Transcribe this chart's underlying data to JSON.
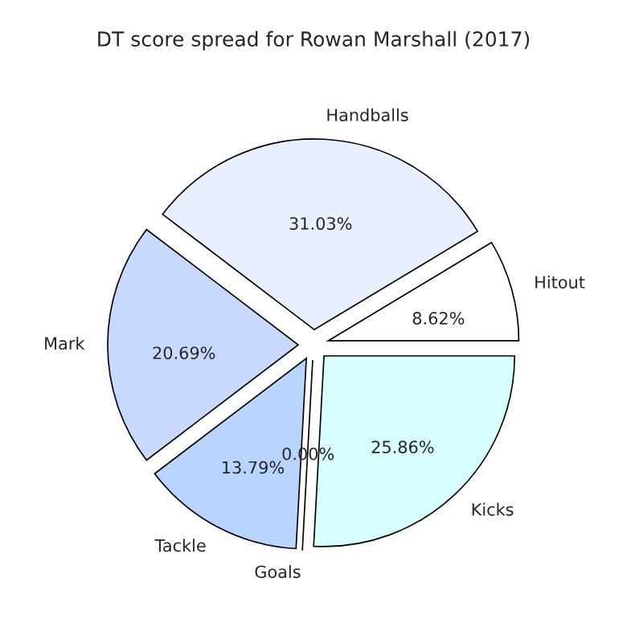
{
  "chart_data": {
    "type": "pie",
    "title": "DT score spread for Rowan Marshall (2017)",
    "categories": [
      "Hitout",
      "Handballs",
      "Mark",
      "Tackle",
      "Goals",
      "Kicks"
    ],
    "values": [
      8.62,
      31.03,
      20.69,
      13.79,
      0.0,
      25.86
    ],
    "value_labels": [
      "8.62%",
      "31.03%",
      "20.69%",
      "13.79%",
      "0.00%",
      "25.86%"
    ],
    "colors": [
      "#ffffff",
      "#e8f0ff",
      "#c8d8ff",
      "#b8d4ff",
      "#a8c8ff",
      "#d8ffff"
    ],
    "legend": false
  }
}
